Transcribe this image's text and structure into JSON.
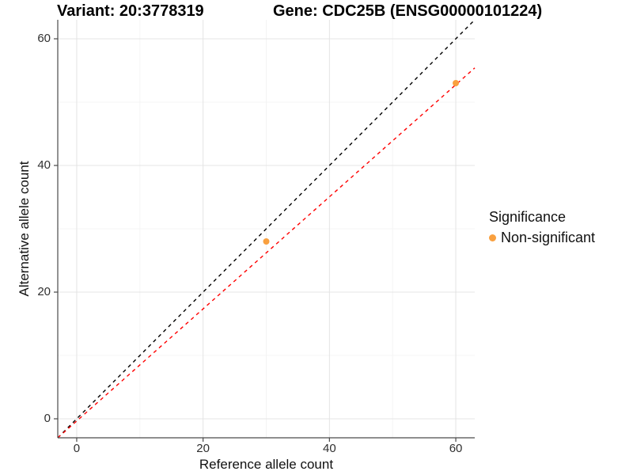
{
  "chart_data": {
    "type": "scatter",
    "title_left": "Variant: 20:3778319",
    "title_right": "Gene: CDC25B (ENSG00000101224)",
    "xlabel": "Reference allele count",
    "ylabel": "Alternative allele count",
    "legend_title": "Significance",
    "legend_position": "right",
    "grid": true,
    "x_domain": [
      -3,
      63
    ],
    "y_domain": [
      -3,
      63
    ],
    "x_ticks": [
      0,
      20,
      40,
      60
    ],
    "y_ticks": [
      0,
      20,
      40,
      60
    ],
    "x_minor_ticks": [
      10,
      30,
      50
    ],
    "y_minor_ticks": [
      10,
      30,
      50
    ],
    "series": [
      {
        "name": "Non-significant",
        "color": "#F9A03F",
        "points": [
          {
            "x": 30,
            "y": 28
          },
          {
            "x": 60,
            "y": 53
          }
        ]
      }
    ],
    "reference_lines": [
      {
        "name": "identity-line",
        "style": "dashed",
        "color": "#000000",
        "x1": -3,
        "y1": -3,
        "x2": 63,
        "y2": 63
      },
      {
        "name": "fit-line",
        "style": "dashed",
        "color": "#FF0000",
        "x1": -3,
        "y1": -3.0,
        "x2": 63,
        "y2": 55.4
      }
    ],
    "colors": {
      "grid_major": "#E4E4E4",
      "grid_minor": "#F2F2F2",
      "axis": "#4A4A4A",
      "tick": "#4A4A4A"
    }
  }
}
